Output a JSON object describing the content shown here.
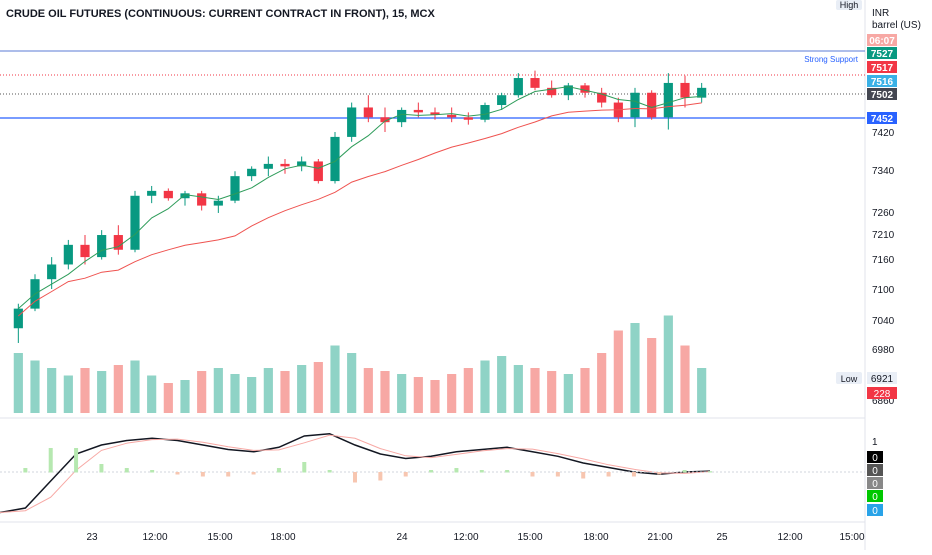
{
  "chart_data": {
    "type": "candlestick",
    "title": "CRUDE OIL FUTURES (CONTINUOUS: CURRENT CONTRACT IN FRONT), 15, MCX",
    "currency": "INR",
    "unit": "barrel (US)",
    "y_ticks": [
      7420,
      7340,
      7260,
      7210,
      7160,
      7100,
      7040,
      6980
    ],
    "x_ticks": [
      "23",
      "12:00",
      "15:00",
      "18:00",
      "24",
      "12:00",
      "15:00",
      "18:00",
      "21:00",
      "25",
      "12:00",
      "15:00"
    ],
    "horizontal_lines": [
      {
        "label": "7527",
        "role": "High",
        "text": "High",
        "color": "#4a6fd0"
      },
      {
        "label": "Strong Support",
        "color": "#1f77f0"
      }
    ],
    "price_badges": [
      {
        "text": "06:07",
        "color": "#f7a8a4"
      },
      {
        "text": "7527",
        "color": "#089981"
      },
      {
        "text": "7517",
        "color": "#f23645"
      },
      {
        "text": "7516",
        "color": "#3ab1e6"
      },
      {
        "text": "7502",
        "color": "#434651"
      },
      {
        "text": "7452",
        "color": "#2962ff"
      }
    ],
    "low_label": "Low",
    "low_value": "6921",
    "volume_badge": "228",
    "volume_axis_label": "6860",
    "macd_axis_labels": [
      "1"
    ],
    "macd_badges": [
      {
        "text": "0",
        "color": "#000000"
      },
      {
        "text": "0",
        "color": "#555555"
      },
      {
        "text": "0",
        "color": "#888888"
      },
      {
        "text": "0",
        "color": "#00c800"
      },
      {
        "text": "0",
        "color": "#29a3e8"
      }
    ],
    "candles_ohlc_approx": [
      [
        7020,
        7070,
        6990,
        7060
      ],
      [
        7060,
        7130,
        7055,
        7120
      ],
      [
        7120,
        7165,
        7100,
        7150
      ],
      [
        7150,
        7200,
        7140,
        7190
      ],
      [
        7190,
        7210,
        7150,
        7165
      ],
      [
        7165,
        7220,
        7160,
        7210
      ],
      [
        7210,
        7230,
        7170,
        7180
      ],
      [
        7180,
        7300,
        7175,
        7290
      ],
      [
        7290,
        7310,
        7275,
        7300
      ],
      [
        7300,
        7305,
        7280,
        7285
      ],
      [
        7285,
        7300,
        7270,
        7295
      ],
      [
        7295,
        7300,
        7260,
        7270
      ],
      [
        7270,
        7290,
        7255,
        7280
      ],
      [
        7280,
        7340,
        7275,
        7330
      ],
      [
        7330,
        7350,
        7320,
        7345
      ],
      [
        7345,
        7370,
        7330,
        7355
      ],
      [
        7355,
        7365,
        7335,
        7350
      ],
      [
        7350,
        7370,
        7340,
        7360
      ],
      [
        7360,
        7365,
        7315,
        7320
      ],
      [
        7320,
        7420,
        7315,
        7410
      ],
      [
        7410,
        7480,
        7400,
        7470
      ],
      [
        7470,
        7495,
        7440,
        7450
      ],
      [
        7450,
        7470,
        7420,
        7440
      ],
      [
        7440,
        7470,
        7430,
        7465
      ],
      [
        7465,
        7480,
        7450,
        7460
      ],
      [
        7460,
        7470,
        7445,
        7455
      ],
      [
        7455,
        7470,
        7440,
        7450
      ],
      [
        7450,
        7460,
        7435,
        7445
      ],
      [
        7445,
        7480,
        7440,
        7475
      ],
      [
        7475,
        7500,
        7465,
        7495
      ],
      [
        7495,
        7540,
        7490,
        7530
      ],
      [
        7530,
        7545,
        7505,
        7510
      ],
      [
        7510,
        7525,
        7490,
        7495
      ],
      [
        7495,
        7520,
        7485,
        7515
      ],
      [
        7515,
        7520,
        7490,
        7500
      ],
      [
        7500,
        7510,
        7470,
        7480
      ],
      [
        7480,
        7490,
        7440,
        7450
      ],
      [
        7450,
        7510,
        7430,
        7500
      ],
      [
        7500,
        7505,
        7445,
        7450
      ],
      [
        7450,
        7540,
        7425,
        7520
      ],
      [
        7520,
        7535,
        7470,
        7490
      ],
      [
        7490,
        7520,
        7480,
        7510
      ]
    ],
    "volumes_approx": [
      40,
      35,
      30,
      25,
      30,
      28,
      32,
      35,
      25,
      20,
      22,
      28,
      30,
      26,
      24,
      30,
      28,
      32,
      34,
      45,
      40,
      30,
      28,
      26,
      24,
      22,
      26,
      30,
      35,
      38,
      32,
      30,
      28,
      26,
      30,
      40,
      55,
      60,
      50,
      65,
      45,
      30
    ],
    "macd_line_approx": [
      -0.9,
      -0.8,
      -0.2,
      0.4,
      0.6,
      0.7,
      0.75,
      0.7,
      0.6,
      0.5,
      0.45,
      0.55,
      0.8,
      0.85,
      0.6,
      0.4,
      0.3,
      0.35,
      0.45,
      0.5,
      0.55,
      0.45,
      0.35,
      0.2,
      0.1,
      0.0,
      -0.05,
      0.0,
      0.02
    ]
  }
}
